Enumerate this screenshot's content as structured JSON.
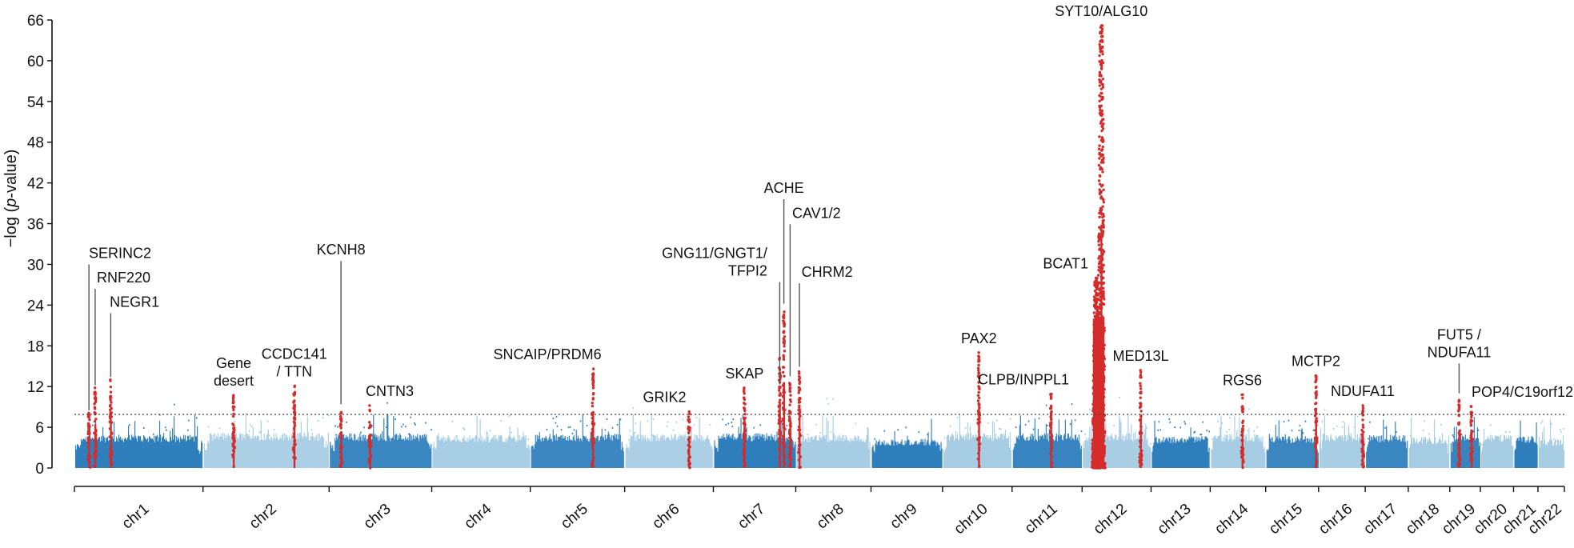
{
  "chart_data": {
    "type": "scatter",
    "subtype": "manhattan",
    "title": "",
    "xlabel": "",
    "ylabel": "−log (",
    "ylabel_italic": "p",
    "ylabel_suffix": "-value)",
    "ylim": [
      0,
      66
    ],
    "yticks": [
      0,
      6,
      12,
      18,
      24,
      30,
      36,
      42,
      48,
      54,
      60,
      66
    ],
    "significance_threshold": 7.9,
    "colors": {
      "dark": "#2f7fbd",
      "light": "#a6cde4",
      "hit": "#d42b2b",
      "threshold": "#444444"
    },
    "chromosomes": [
      {
        "name": "chr1",
        "start": 0,
        "end": 248,
        "shade": "dark",
        "base": 4.6
      },
      {
        "name": "chr2",
        "start": 248,
        "end": 491,
        "shade": "light",
        "base": 4.9
      },
      {
        "name": "chr3",
        "start": 491,
        "end": 689,
        "shade": "dark",
        "base": 4.8
      },
      {
        "name": "chr4",
        "start": 689,
        "end": 879,
        "shade": "light",
        "base": 4.6
      },
      {
        "name": "chr5",
        "start": 879,
        "end": 1061,
        "shade": "dark",
        "base": 4.7
      },
      {
        "name": "chr6",
        "start": 1061,
        "end": 1232,
        "shade": "light",
        "base": 4.7
      },
      {
        "name": "chr7",
        "start": 1232,
        "end": 1391,
        "shade": "dark",
        "base": 4.8
      },
      {
        "name": "chr8",
        "start": 1391,
        "end": 1536,
        "shade": "light",
        "base": 4.6
      },
      {
        "name": "chr9",
        "start": 1536,
        "end": 1674,
        "shade": "dark",
        "base": 4.0
      },
      {
        "name": "chr10",
        "start": 1674,
        "end": 1808,
        "shade": "light",
        "base": 4.8
      },
      {
        "name": "chr11",
        "start": 1808,
        "end": 1943,
        "shade": "dark",
        "base": 4.8
      },
      {
        "name": "chr12",
        "start": 1943,
        "end": 2076,
        "shade": "light",
        "base": 4.8
      },
      {
        "name": "chr13",
        "start": 2076,
        "end": 2190,
        "shade": "dark",
        "base": 4.4
      },
      {
        "name": "chr14",
        "start": 2190,
        "end": 2297,
        "shade": "light",
        "base": 4.7
      },
      {
        "name": "chr15",
        "start": 2297,
        "end": 2399,
        "shade": "dark",
        "base": 4.4
      },
      {
        "name": "chr16",
        "start": 2399,
        "end": 2489,
        "shade": "light",
        "base": 4.8
      },
      {
        "name": "chr17",
        "start": 2489,
        "end": 2572,
        "shade": "dark",
        "base": 4.6
      },
      {
        "name": "chr18",
        "start": 2572,
        "end": 2652,
        "shade": "light",
        "base": 4.3
      },
      {
        "name": "chr19",
        "start": 2652,
        "end": 2711,
        "shade": "dark",
        "base": 4.6
      },
      {
        "name": "chr20",
        "start": 2711,
        "end": 2775,
        "shade": "light",
        "base": 4.6
      },
      {
        "name": "chr21",
        "start": 2775,
        "end": 2822,
        "shade": "dark",
        "base": 4.4
      },
      {
        "name": "chr22",
        "start": 2822,
        "end": 2873,
        "shade": "light",
        "base": 4.0
      }
    ],
    "peaks": [
      {
        "pos": 28,
        "max": 8.1
      },
      {
        "pos": 40,
        "max": 11.8
      },
      {
        "pos": 70,
        "max": 13.0
      },
      {
        "pos": 307,
        "max": 10.7
      },
      {
        "pos": 424,
        "max": 12.1
      },
      {
        "pos": 514,
        "max": 8.2
      },
      {
        "pos": 570,
        "max": 9.2
      },
      {
        "pos": 1000,
        "max": 14.6
      },
      {
        "pos": 1185,
        "max": 8.3
      },
      {
        "pos": 1292,
        "max": 11.8
      },
      {
        "pos": 1360,
        "max": 16.2
      },
      {
        "pos": 1368,
        "max": 23.0
      },
      {
        "pos": 1380,
        "max": 12.5
      },
      {
        "pos": 1398,
        "max": 14.2
      },
      {
        "pos": 1744,
        "max": 17.0
      },
      {
        "pos": 1883,
        "max": 10.9
      },
      {
        "pos": 1970,
        "max": 28.0
      },
      {
        "pos": 1980,
        "max": 65.2
      },
      {
        "pos": 2056,
        "max": 14.4
      },
      {
        "pos": 2252,
        "max": 10.8
      },
      {
        "pos": 2394,
        "max": 13.6
      },
      {
        "pos": 2484,
        "max": 9.2
      },
      {
        "pos": 2670,
        "max": 10.0
      },
      {
        "pos": 2694,
        "max": 9.1
      }
    ],
    "annotations": [
      {
        "lines": [
          "SERINC2"
        ],
        "pos": 28,
        "anchor": "middle",
        "label_at": 88,
        "line_top": 30,
        "line_bottom": 8.5
      },
      {
        "lines": [
          "RNF220"
        ],
        "pos": 40,
        "anchor": "middle",
        "label_at": 95,
        "line_top": 26.4,
        "line_bottom": 12.2
      },
      {
        "lines": [
          "NEGR1"
        ],
        "pos": 70,
        "anchor": "middle",
        "label_at": 116,
        "line_top": 22.8,
        "line_bottom": 13.4
      },
      {
        "lines": [
          "Gene",
          "desert"
        ],
        "pos": 307,
        "anchor": "middle",
        "label_at": 307,
        "line_top": null,
        "line_bottom": null
      },
      {
        "lines": [
          "CCDC141",
          "/ TTN"
        ],
        "pos": 424,
        "anchor": "middle",
        "label_at": 424,
        "line_top": null,
        "line_bottom": null
      },
      {
        "lines": [
          "KCNH8"
        ],
        "pos": 514,
        "anchor": "middle",
        "label_at": 514,
        "line_top": 30.5,
        "line_bottom": 9.4
      },
      {
        "lines": [
          "CNTN3"
        ],
        "pos": 570,
        "anchor": "middle",
        "label_at": 608,
        "line_top": null,
        "line_bottom": null
      },
      {
        "lines": [
          "SNCAIP/PRDM6"
        ],
        "pos": 1000,
        "anchor": "middle",
        "label_at": 912,
        "line_top": null,
        "line_bottom": null
      },
      {
        "lines": [
          "GRIK2"
        ],
        "pos": 1185,
        "anchor": "middle",
        "label_at": 1138,
        "line_top": null,
        "line_bottom": null
      },
      {
        "lines": [
          "SKAP"
        ],
        "pos": 1292,
        "anchor": "middle",
        "label_at": 1292,
        "line_top": null,
        "line_bottom": null
      },
      {
        "lines": [
          "GNG11/GNGT1/",
          "TFPI2"
        ],
        "pos": 1360,
        "anchor": "end",
        "label_at": 1336,
        "line_top": 27.4,
        "line_bottom": 12.3
      },
      {
        "lines": [
          "ACHE"
        ],
        "pos": 1368,
        "anchor": "middle",
        "label_at": 1368,
        "line_top": 39.6,
        "line_bottom": 24.2
      },
      {
        "lines": [
          "CAV1/2"
        ],
        "pos": 1380,
        "anchor": "start",
        "label_at": 1384,
        "line_top": 35.9,
        "line_bottom": 13.5
      },
      {
        "lines": [
          "CHRM2"
        ],
        "pos": 1398,
        "anchor": "start",
        "label_at": 1402,
        "line_top": 27.2,
        "line_bottom": 14.9
      },
      {
        "lines": [
          "PAX2"
        ],
        "pos": 1744,
        "anchor": "middle",
        "label_at": 1744,
        "line_top": null,
        "line_bottom": null
      },
      {
        "lines": [
          "CLPB/INPPL1"
        ],
        "pos": 1883,
        "anchor": "middle",
        "label_at": 1830,
        "line_top": null,
        "line_bottom": null
      },
      {
        "lines": [
          "BCAT1"
        ],
        "pos": 1970,
        "anchor": "end",
        "label_at": 1955,
        "line_top": null,
        "line_bottom": null
      },
      {
        "lines": [
          "SYT10/ALG10"
        ],
        "pos": 1980,
        "anchor": "middle",
        "label_at": 1980,
        "line_top": null,
        "line_bottom": null
      },
      {
        "lines": [
          "MED13L"
        ],
        "pos": 2056,
        "anchor": "middle",
        "label_at": 2056,
        "line_top": null,
        "line_bottom": null
      },
      {
        "lines": [
          "RGS6"
        ],
        "pos": 2252,
        "anchor": "middle",
        "label_at": 2252,
        "line_top": null,
        "line_bottom": null
      },
      {
        "lines": [
          "MCTP2"
        ],
        "pos": 2394,
        "anchor": "middle",
        "label_at": 2394,
        "line_top": null,
        "line_bottom": null
      },
      {
        "lines": [
          "NDUFA11"
        ],
        "pos": 2484,
        "anchor": "middle",
        "label_at": 2484,
        "line_top": null,
        "line_bottom": null
      },
      {
        "lines": [
          "FUT5 /",
          "NDUFA11"
        ],
        "pos": 2670,
        "anchor": "middle",
        "label_at": 2670,
        "line_top": 15.4,
        "line_bottom": 11.0
      },
      {
        "lines": [
          "POP4/C19orf12"
        ],
        "pos": 2694,
        "anchor": "start",
        "label_at": 2694,
        "line_top": null,
        "line_bottom": null
      }
    ]
  }
}
